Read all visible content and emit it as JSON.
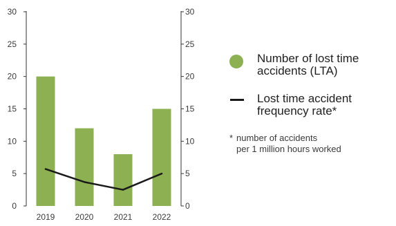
{
  "chart_data": {
    "type": "bar",
    "categories": [
      "2019",
      "2020",
      "2021",
      "2022"
    ],
    "series": [
      {
        "name": "Number of lost time accidents (LTA)",
        "type": "bar",
        "axis": "left",
        "values": [
          20,
          12,
          8,
          15
        ]
      },
      {
        "name": "Lost time accident frequency rate*",
        "type": "line",
        "axis": "right",
        "values": [
          5.7,
          3.7,
          2.5,
          5.0
        ]
      }
    ],
    "ylim": [
      0,
      30
    ],
    "y2lim": [
      0,
      30
    ],
    "yticks": [
      0,
      5,
      10,
      15,
      20,
      25,
      30
    ],
    "ytick_labels": [
      "0",
      "5",
      "10",
      "15",
      "20",
      "25",
      "30"
    ],
    "y2tick_labels": [
      "0",
      "5",
      "10",
      "15",
      "20",
      "25",
      "30"
    ],
    "grid": false,
    "legend_position": "right",
    "colors": {
      "bar": "#8db152",
      "line": "#1a1a1a",
      "axis": "#333333"
    }
  },
  "legend": {
    "bar_label": "Number of lost time accidents (LTA)",
    "line_label": "Lost time accident frequency rate*"
  },
  "footnote": {
    "marker": "*",
    "line1": "number of accidents",
    "line2": "per 1 million hours worked"
  }
}
